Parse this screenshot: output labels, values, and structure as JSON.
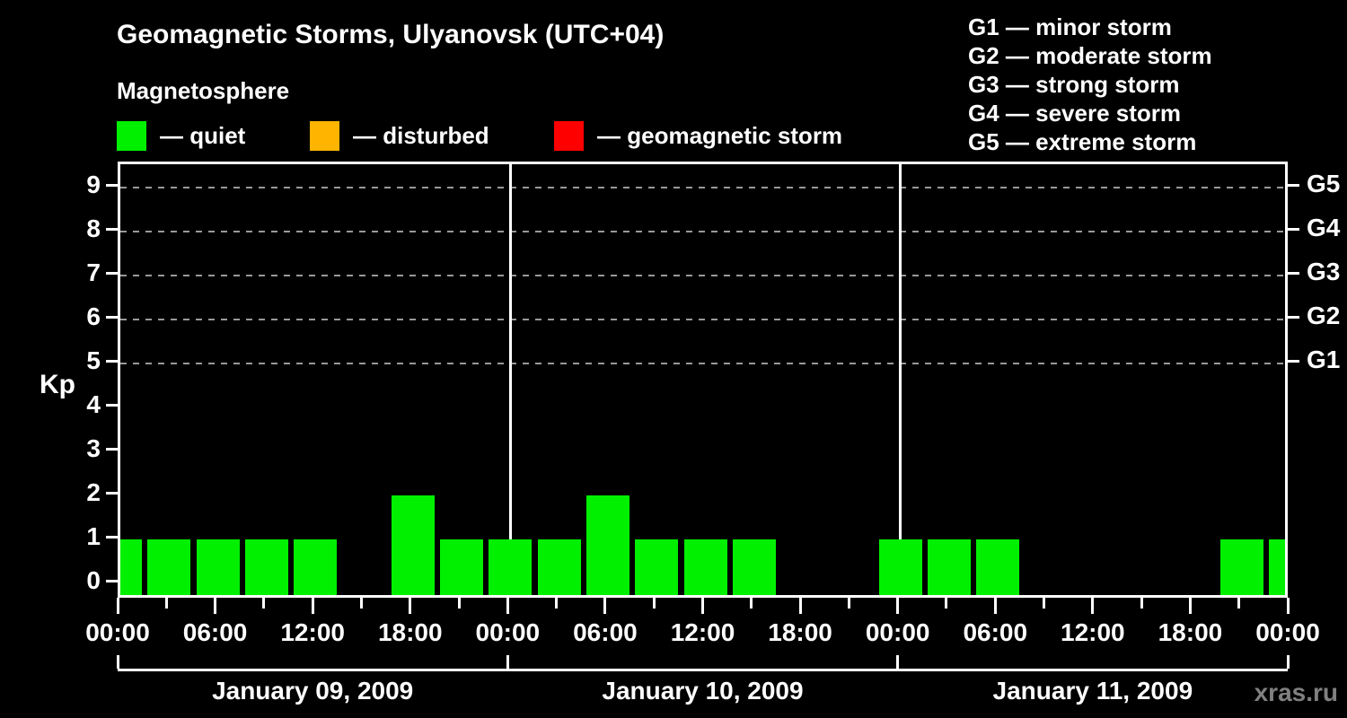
{
  "title": "Geomagnetic Storms, Ulyanovsk (UTC+04)",
  "subtitle": "Magnetosphere",
  "condition_legend": {
    "items": [
      {
        "name": "quiet",
        "label": "— quiet",
        "color": "#00f000"
      },
      {
        "name": "disturbed",
        "label": "— disturbed",
        "color": "#ffb400"
      },
      {
        "name": "storm",
        "label": "— geomagnetic storm",
        "color": "#ff0000"
      }
    ]
  },
  "storm_scale_legend": {
    "items": [
      "G1 — minor storm",
      "G2 — moderate storm",
      "G3 — strong storm",
      "G4 — severe storm",
      "G5 — extreme storm"
    ]
  },
  "watermark": "xras.ru",
  "colors": {
    "background": "#000000",
    "text": "#ffffff",
    "axis": "#ffffff",
    "grid": "#999999",
    "quiet": "#00f000",
    "disturbed": "#ffb400",
    "storm": "#ff0000",
    "watermark": "#808080"
  },
  "chart_data": {
    "type": "bar",
    "title": "Geomagnetic Storms, Ulyanovsk (UTC+04)",
    "ylabel": "Kp",
    "ylim": [
      0,
      9
    ],
    "yticks": [
      0,
      1,
      2,
      3,
      4,
      5,
      6,
      7,
      8,
      9
    ],
    "grid": "dashed horizontal gridlines at Kp 5-9 only",
    "grid_levels": [
      5,
      6,
      7,
      8,
      9
    ],
    "right_axis": [
      {
        "label": "G1",
        "kp": 5
      },
      {
        "label": "G2",
        "kp": 6
      },
      {
        "label": "G3",
        "kp": 7
      },
      {
        "label": "G4",
        "kp": 8
      },
      {
        "label": "G5",
        "kp": 9
      }
    ],
    "start": "January 09, 2009 00:00",
    "end": "January 12, 2009 00:00",
    "interval_hours": 3,
    "bars_centered_on_time_marks": true,
    "kp_values": [
      1,
      1,
      1,
      1,
      1,
      0,
      2,
      1,
      1,
      1,
      2,
      1,
      1,
      1,
      0,
      0,
      1,
      1,
      1,
      0,
      0,
      0,
      0,
      1,
      1
    ],
    "bar_status_all": "quiet",
    "bar_color": "#00f000",
    "x_tick_labels_6h": [
      "00:00",
      "06:00",
      "12:00",
      "18:00",
      "00:00",
      "06:00",
      "12:00",
      "18:00",
      "00:00",
      "06:00",
      "12:00",
      "18:00",
      "00:00"
    ],
    "day_labels": [
      "January 09, 2009",
      "January 10, 2009",
      "January 11, 2009"
    ],
    "legend_position": "top-left",
    "g_legend_position": "top-right"
  }
}
